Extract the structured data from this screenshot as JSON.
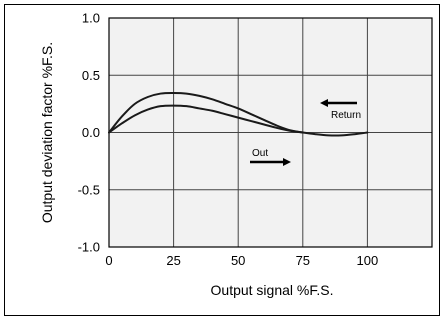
{
  "chart_data": {
    "type": "line",
    "xlabel": "Output signal %F.S.",
    "ylabel": "Output deviation factor  %F.S.",
    "xlim": [
      0,
      125
    ],
    "ylim": [
      -1.0,
      1.0
    ],
    "x_ticks": [
      0,
      25,
      50,
      75,
      100
    ],
    "y_ticks": [
      1.0,
      0.5,
      0.0,
      -0.5,
      -1.0
    ],
    "x_tick_labels": [
      "0",
      "25",
      "50",
      "75",
      "100"
    ],
    "y_tick_labels": [
      "1.0",
      "0.5",
      "0.0",
      "-0.5",
      "-1.0"
    ],
    "grid": true,
    "series": [
      {
        "name": "Return",
        "x": [
          0,
          5,
          10,
          15,
          20,
          25,
          30,
          35,
          40,
          45,
          50,
          55,
          60,
          65,
          70,
          75
        ],
        "y": [
          0.0,
          0.14,
          0.25,
          0.31,
          0.34,
          0.345,
          0.34,
          0.32,
          0.29,
          0.25,
          0.21,
          0.16,
          0.11,
          0.06,
          0.02,
          0.0
        ]
      },
      {
        "name": "Out",
        "x": [
          0,
          5,
          10,
          15,
          20,
          25,
          30,
          35,
          40,
          45,
          50,
          55,
          60,
          65,
          70,
          75,
          80,
          85,
          90,
          95,
          100
        ],
        "y": [
          0.0,
          0.08,
          0.15,
          0.2,
          0.23,
          0.235,
          0.23,
          0.21,
          0.19,
          0.16,
          0.13,
          0.1,
          0.07,
          0.04,
          0.015,
          0.0,
          -0.015,
          -0.025,
          -0.025,
          -0.015,
          0.0
        ]
      }
    ],
    "annotations": [
      {
        "text": "Return",
        "direction": "left"
      },
      {
        "text": "Out",
        "direction": "right"
      }
    ]
  }
}
